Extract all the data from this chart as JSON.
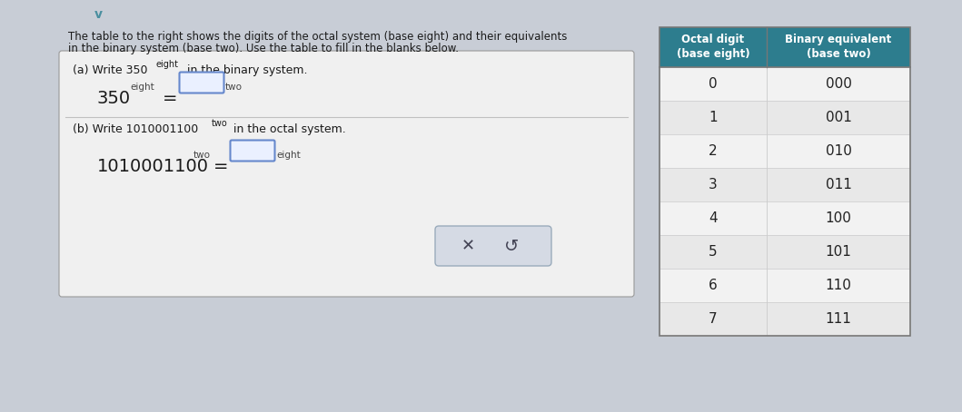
{
  "bg_color": "#c8cdd6",
  "title_text1": "The table to the right shows the digits of the octal system (base eight) and their equivalents",
  "title_text2": "in the binary system (base two). Use the table to fill in the blanks below.",
  "title_fontsize": 8.5,
  "table_header_bg": "#2d7d8e",
  "table_header_color": "#ffffff",
  "table_rows": [
    [
      "0",
      "000"
    ],
    [
      "1",
      "001"
    ],
    [
      "2",
      "010"
    ],
    [
      "3",
      "011"
    ],
    [
      "4",
      "100"
    ],
    [
      "5",
      "101"
    ],
    [
      "6",
      "110"
    ],
    [
      "7",
      "111"
    ]
  ],
  "table_row_bg_even": "#f2f2f2",
  "table_row_bg_odd": "#e8e8e8",
  "table_text_color": "#222222",
  "box_bg": "#f0f0f0",
  "box_border": "#aaaaaa",
  "chevron_color": "#4a8fa0",
  "x_button_bg": "#d5dae4",
  "x_button_border": "#9aabbb"
}
